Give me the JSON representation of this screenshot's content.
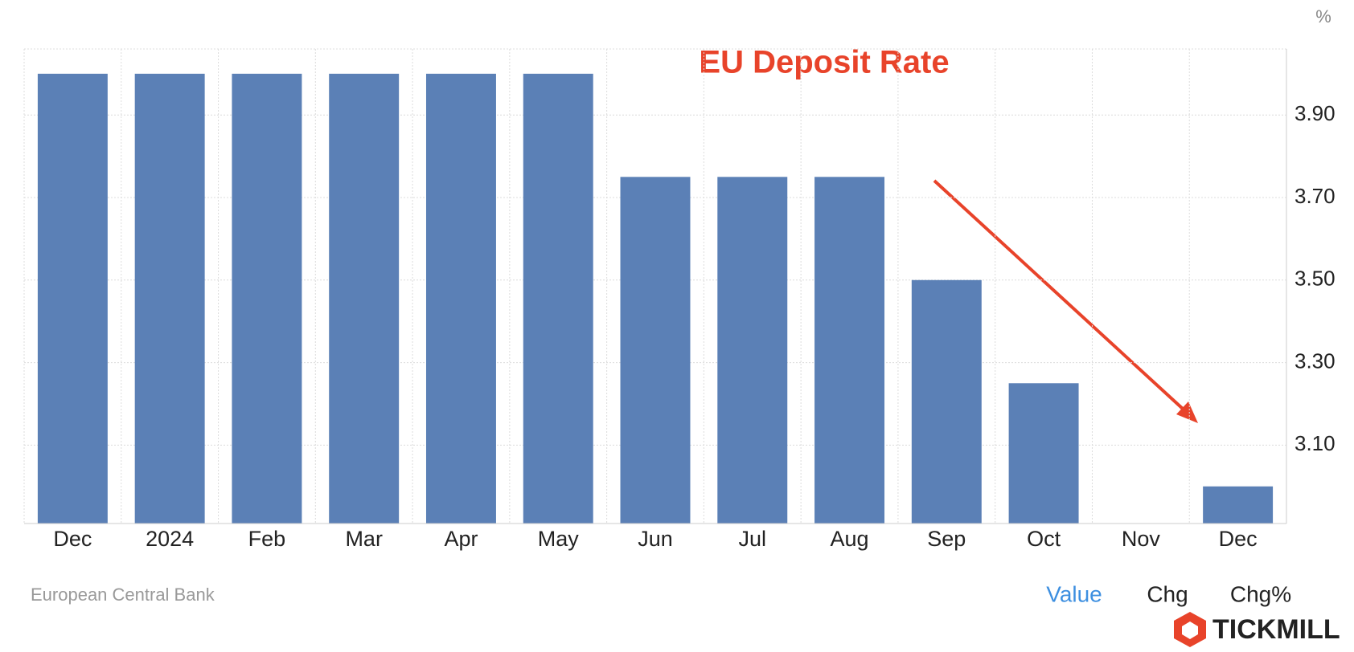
{
  "chart_data": {
    "type": "bar",
    "title": "EU Deposit Rate",
    "unit": "%",
    "categories": [
      "Dec",
      "2024",
      "Feb",
      "Mar",
      "Apr",
      "May",
      "Jun",
      "Jul",
      "Aug",
      "Sep",
      "Oct",
      "Nov",
      "Dec"
    ],
    "values": [
      4.0,
      4.0,
      4.0,
      4.0,
      4.0,
      4.0,
      3.75,
      3.75,
      3.75,
      3.5,
      3.25,
      null,
      3.0
    ],
    "color": "#5b80b6",
    "ylim": [
      2.91,
      4.06
    ],
    "yticks": [
      {
        "value": 3.1,
        "label": "3.10"
      },
      {
        "value": 3.3,
        "label": "3.30"
      },
      {
        "value": 3.5,
        "label": "3.50"
      },
      {
        "value": 3.7,
        "label": "3.70"
      },
      {
        "value": 3.9,
        "label": "3.90"
      }
    ],
    "grid": true,
    "source": "European Central Bank",
    "tabs": [
      "Value",
      "Chg",
      "Chg%"
    ],
    "brand": "TICKMILL"
  }
}
